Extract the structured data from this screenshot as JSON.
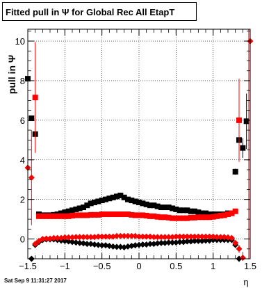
{
  "title": "Fitted pull in  Ψ  for Global Rec All EtapT",
  "footer_date": "Sat Sep  9 11:31:27 2017",
  "chart_data": {
    "type": "scatter",
    "title": "Fitted pull in  Ψ  for Global Rec All EtapT",
    "xlabel": "η",
    "ylabel": "pull in Ψ",
    "xlim": [
      -1.5,
      1.5
    ],
    "ylim": [
      -1,
      10.6
    ],
    "xticks": [
      -1.5,
      -1,
      -0.5,
      0,
      0.5,
      1,
      1.5
    ],
    "xtick_labels": [
      "−1.5",
      "−1",
      "−0.5",
      "0",
      "0.5",
      "1",
      "1.5"
    ],
    "yticks": [
      0,
      2,
      4,
      6,
      8,
      10
    ],
    "ytick_labels": [
      "0",
      "2",
      "4",
      "6",
      "8",
      "10"
    ],
    "grid": true,
    "series": [
      {
        "marker": "square",
        "color": "#000000",
        "x": [
          -1.5,
          -1.45,
          -1.4,
          -1.35,
          -1.3,
          -1.25,
          -1.2,
          -1.15,
          -1.1,
          -1.05,
          -1.0,
          -0.95,
          -0.9,
          -0.85,
          -0.8,
          -0.75,
          -0.7,
          -0.65,
          -0.6,
          -0.55,
          -0.5,
          -0.45,
          -0.4,
          -0.35,
          -0.3,
          -0.25,
          -0.2,
          -0.15,
          -0.1,
          -0.05,
          0.0,
          0.05,
          0.1,
          0.15,
          0.2,
          0.25,
          0.3,
          0.35,
          0.4,
          0.45,
          0.5,
          0.55,
          0.6,
          0.65,
          0.7,
          0.75,
          0.8,
          0.85,
          0.9,
          0.95,
          1.0,
          1.05,
          1.1,
          1.15,
          1.2,
          1.25,
          1.3,
          1.35,
          1.4,
          1.45
        ],
        "y": [
          8.1,
          6.1,
          5.3,
          1.25,
          1.2,
          1.2,
          1.2,
          1.22,
          1.25,
          1.3,
          1.35,
          1.4,
          1.45,
          1.5,
          1.55,
          1.6,
          1.7,
          1.8,
          1.85,
          1.9,
          1.95,
          2.0,
          2.05,
          2.1,
          2.15,
          2.2,
          2.1,
          2.0,
          1.95,
          1.9,
          1.85,
          1.8,
          1.75,
          1.7,
          1.7,
          1.65,
          1.6,
          1.6,
          1.6,
          1.55,
          1.5,
          1.45,
          1.45,
          1.45,
          1.4,
          1.4,
          1.35,
          1.3,
          1.3,
          1.25,
          1.25,
          1.25,
          1.25,
          1.25,
          1.3,
          1.3,
          3.4,
          5.0,
          4.6,
          5.95
        ],
        "err": [
          0,
          0,
          0,
          0.05,
          0.05,
          0.05,
          0.05,
          0.05,
          0.05,
          0.05,
          0.05,
          0.05,
          0.05,
          0.05,
          0.05,
          0.05,
          0.05,
          0.05,
          0.05,
          0.05,
          0.05,
          0.05,
          0.05,
          0.05,
          0.05,
          0.05,
          0.05,
          0.05,
          0.05,
          0.05,
          0.05,
          0.05,
          0.05,
          0.05,
          0.05,
          0.05,
          0.05,
          0.05,
          0.05,
          0.05,
          0.05,
          0.05,
          0.05,
          0.05,
          0.05,
          0.05,
          0.05,
          0.05,
          0.05,
          0.05,
          0.05,
          0.05,
          0.05,
          0.05,
          0.05,
          0.05,
          0.15,
          0.4,
          0.5,
          1.4
        ]
      },
      {
        "marker": "square",
        "color": "#ff0000",
        "x": [
          -1.4,
          -1.35,
          -1.3,
          -1.25,
          -1.2,
          -1.15,
          -1.1,
          -1.05,
          -1.0,
          -0.95,
          -0.9,
          -0.85,
          -0.8,
          -0.75,
          -0.7,
          -0.65,
          -0.6,
          -0.55,
          -0.5,
          -0.45,
          -0.4,
          -0.35,
          -0.3,
          -0.25,
          -0.2,
          -0.15,
          -0.1,
          -0.05,
          0.0,
          0.05,
          0.1,
          0.15,
          0.2,
          0.25,
          0.3,
          0.35,
          0.4,
          0.45,
          0.5,
          0.55,
          0.6,
          0.65,
          0.7,
          0.75,
          0.8,
          0.85,
          0.9,
          0.95,
          1.0,
          1.05,
          1.1,
          1.15,
          1.2,
          1.25,
          1.3,
          1.35
        ],
        "y": [
          7.15,
          1.15,
          1.15,
          1.15,
          1.15,
          1.15,
          1.15,
          1.15,
          1.15,
          1.15,
          1.18,
          1.2,
          1.2,
          1.2,
          1.2,
          1.22,
          1.22,
          1.22,
          1.25,
          1.25,
          1.25,
          1.25,
          1.25,
          1.25,
          1.25,
          1.25,
          1.22,
          1.2,
          1.2,
          1.2,
          1.18,
          1.15,
          1.15,
          1.12,
          1.1,
          1.1,
          1.08,
          1.05,
          1.05,
          1.05,
          1.05,
          1.05,
          1.08,
          1.08,
          1.1,
          1.1,
          1.1,
          1.1,
          1.12,
          1.15,
          1.18,
          1.2,
          1.25,
          1.3,
          1.4,
          6.0
        ],
        "err": [
          2.8,
          0.05,
          0.05,
          0.05,
          0.05,
          0.05,
          0.05,
          0.05,
          0.05,
          0.05,
          0.05,
          0.05,
          0.05,
          0.05,
          0.05,
          0.05,
          0.05,
          0.05,
          0.05,
          0.05,
          0.05,
          0.05,
          0.05,
          0.05,
          0.05,
          0.05,
          0.05,
          0.05,
          0.05,
          0.05,
          0.05,
          0.05,
          0.05,
          0.05,
          0.05,
          0.05,
          0.05,
          0.05,
          0.05,
          0.05,
          0.05,
          0.05,
          0.05,
          0.05,
          0.05,
          0.05,
          0.05,
          0.05,
          0.05,
          0.05,
          0.05,
          0.05,
          0.05,
          0.05,
          0.05,
          2.1
        ]
      },
      {
        "marker": "diamond",
        "color": "#000000",
        "x": [
          -1.45,
          -1.4,
          -1.35,
          -1.3,
          -1.25,
          -1.2,
          -1.15,
          -1.1,
          -1.05,
          -1.0,
          -0.95,
          -0.9,
          -0.85,
          -0.8,
          -0.75,
          -0.7,
          -0.65,
          -0.6,
          -0.55,
          -0.5,
          -0.45,
          -0.4,
          -0.35,
          -0.3,
          -0.25,
          -0.2,
          -0.15,
          -0.1,
          -0.05,
          0.0,
          0.05,
          0.1,
          0.15,
          0.2,
          0.25,
          0.3,
          0.35,
          0.4,
          0.45,
          0.5,
          0.55,
          0.6,
          0.65,
          0.7,
          0.75,
          0.8,
          0.85,
          0.9,
          0.95,
          1.0,
          1.05,
          1.1,
          1.15,
          1.2,
          1.25,
          1.3,
          1.35
        ],
        "y": [
          -1.0,
          -0.3,
          -0.15,
          -0.05,
          -0.02,
          -0.02,
          -0.02,
          -0.05,
          -0.08,
          -0.1,
          -0.12,
          -0.15,
          -0.18,
          -0.2,
          -0.22,
          -0.25,
          -0.25,
          -0.28,
          -0.3,
          -0.32,
          -0.32,
          -0.35,
          -0.38,
          -0.4,
          -0.4,
          -0.42,
          -0.38,
          -0.35,
          -0.32,
          -0.3,
          -0.28,
          -0.28,
          -0.25,
          -0.25,
          -0.22,
          -0.2,
          -0.2,
          -0.18,
          -0.18,
          -0.18,
          -0.15,
          -0.15,
          -0.12,
          -0.12,
          -0.1,
          -0.1,
          -0.1,
          -0.08,
          -0.08,
          -0.05,
          -0.05,
          -0.05,
          -0.05,
          -0.05,
          -0.05,
          -0.3,
          -1.0
        ],
        "err": [
          0.1,
          0.1,
          0.05,
          0.05,
          0.05,
          0.05,
          0.05,
          0.05,
          0.05,
          0.05,
          0.05,
          0.05,
          0.05,
          0.05,
          0.05,
          0.05,
          0.05,
          0.05,
          0.05,
          0.05,
          0.05,
          0.05,
          0.05,
          0.05,
          0.05,
          0.05,
          0.05,
          0.05,
          0.05,
          0.05,
          0.05,
          0.05,
          0.05,
          0.05,
          0.05,
          0.05,
          0.05,
          0.05,
          0.05,
          0.05,
          0.05,
          0.05,
          0.05,
          0.05,
          0.05,
          0.05,
          0.05,
          0.05,
          0.05,
          0.05,
          0.05,
          0.05,
          0.05,
          0.05,
          0.05,
          0.1,
          0.1
        ]
      },
      {
        "marker": "diamond",
        "color": "#ff0000",
        "x": [
          -1.5,
          -1.45,
          -1.4,
          -1.35,
          -1.3,
          -1.25,
          -1.2,
          -1.15,
          -1.1,
          -1.05,
          -1.0,
          -0.95,
          -0.9,
          -0.85,
          -0.8,
          -0.75,
          -0.7,
          -0.65,
          -0.6,
          -0.55,
          -0.5,
          -0.45,
          -0.4,
          -0.35,
          -0.3,
          -0.25,
          -0.2,
          -0.15,
          -0.1,
          -0.05,
          0.0,
          0.05,
          0.1,
          0.15,
          0.2,
          0.25,
          0.3,
          0.35,
          0.4,
          0.45,
          0.5,
          0.55,
          0.6,
          0.65,
          0.7,
          0.75,
          0.8,
          0.85,
          0.9,
          0.95,
          1.0,
          1.05,
          1.1,
          1.15,
          1.2,
          1.25,
          1.3,
          1.35,
          1.4,
          1.5
        ],
        "y": [
          3.6,
          3.1,
          -0.25,
          -0.1,
          0.0,
          0.02,
          0.02,
          0.05,
          0.05,
          0.05,
          0.08,
          0.08,
          0.08,
          0.1,
          0.1,
          0.1,
          0.1,
          0.1,
          0.1,
          0.12,
          0.12,
          0.12,
          0.12,
          0.12,
          0.15,
          0.15,
          0.15,
          0.15,
          0.15,
          0.15,
          0.12,
          0.12,
          0.12,
          0.12,
          0.1,
          0.1,
          0.1,
          0.1,
          0.1,
          0.1,
          0.12,
          0.12,
          0.12,
          0.12,
          0.12,
          0.12,
          0.12,
          0.12,
          0.12,
          0.12,
          0.12,
          0.1,
          0.1,
          0.1,
          0.08,
          0.05,
          -0.2,
          -0.5,
          -0.95,
          10.0
        ],
        "err": [
          2.2,
          2.4,
          0.1,
          0.05,
          0.05,
          0.05,
          0.05,
          0.05,
          0.05,
          0.05,
          0.05,
          0.05,
          0.05,
          0.05,
          0.05,
          0.05,
          0.05,
          0.05,
          0.05,
          0.05,
          0.05,
          0.05,
          0.05,
          0.05,
          0.05,
          0.05,
          0.05,
          0.05,
          0.05,
          0.05,
          0.05,
          0.05,
          0.05,
          0.05,
          0.05,
          0.05,
          0.05,
          0.05,
          0.05,
          0.05,
          0.05,
          0.05,
          0.05,
          0.05,
          0.05,
          0.05,
          0.05,
          0.05,
          0.05,
          0.05,
          0.05,
          0.05,
          0.05,
          0.05,
          0.05,
          0.05,
          0.1,
          0.2,
          0.3,
          5.0
        ]
      }
    ]
  }
}
